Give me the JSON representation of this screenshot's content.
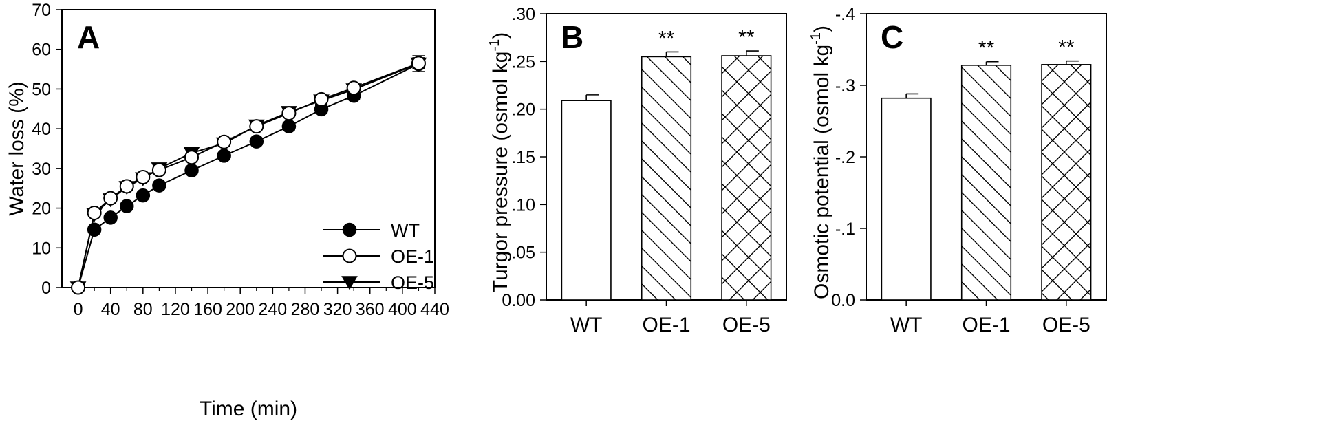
{
  "chart_data": [
    {
      "panel": "A",
      "type": "line",
      "xlabel": "Time (min)",
      "ylabel": "Water loss (%)",
      "xlim": [
        -20,
        440
      ],
      "ylim": [
        0,
        70
      ],
      "xticks": [
        "0",
        "40",
        "80",
        "120",
        "160",
        "200",
        "240",
        "280",
        "320",
        "360",
        "400",
        "440"
      ],
      "yticks": [
        "0",
        "10",
        "20",
        "30",
        "40",
        "50",
        "60",
        "70"
      ],
      "legend_position": "center-right",
      "series": [
        {
          "name": "WT",
          "marker": "filled-circle",
          "x": [
            0,
            20,
            40,
            60,
            80,
            100,
            140,
            180,
            220,
            260,
            300,
            340,
            420
          ],
          "values": [
            0,
            14.6,
            17.6,
            20.5,
            23.2,
            25.7,
            29.5,
            33.2,
            36.8,
            40.6,
            44.9,
            48.3,
            56.3
          ],
          "errors": [
            0,
            0.6,
            0.5,
            0.6,
            0.6,
            0.7,
            0.8,
            0.8,
            0.8,
            0.9,
            0.9,
            0.9,
            1.2
          ]
        },
        {
          "name": "OE-1",
          "marker": "open-circle",
          "x": [
            0,
            20,
            40,
            60,
            80,
            100,
            140,
            180,
            220,
            260,
            300,
            340,
            420
          ],
          "values": [
            0,
            18.8,
            22.5,
            25.5,
            27.8,
            29.6,
            32.8,
            36.7,
            40.6,
            43.9,
            47.4,
            50.3,
            56.5
          ],
          "errors": [
            0,
            0.6,
            0.6,
            0.6,
            0.6,
            0.7,
            0.7,
            0.8,
            0.8,
            0.8,
            0.9,
            0.9,
            1.4
          ]
        },
        {
          "name": "OE-5",
          "marker": "filled-triangle-down",
          "x": [
            0,
            20,
            40,
            60,
            80,
            100,
            140,
            180,
            220,
            260,
            300,
            340,
            420
          ],
          "values": [
            0,
            18.5,
            22.2,
            25.3,
            27.5,
            30.0,
            33.9,
            36.3,
            40.8,
            44.2,
            47.1,
            49.9,
            56.4
          ],
          "errors": [
            0,
            0.6,
            0.6,
            0.6,
            0.6,
            0.7,
            0.7,
            0.8,
            0.8,
            0.8,
            0.9,
            0.9,
            2.0
          ]
        }
      ]
    },
    {
      "panel": "B",
      "type": "bar",
      "xlabel": "",
      "ylabel": "Turgor pressure (osmol kg",
      "ylabel_superscript": "-1",
      "ylabel_close": ")",
      "ylim": [
        0,
        0.3
      ],
      "yticks": [
        "0.00",
        ".05",
        ".10",
        ".15",
        ".20",
        ".25",
        ".30"
      ],
      "categories": [
        "WT",
        "OE-1",
        "OE-5"
      ],
      "values": [
        0.209,
        0.255,
        0.256
      ],
      "errors": [
        0.006,
        0.005,
        0.005
      ],
      "hatch": [
        "none",
        "diagonal",
        "crosshatch"
      ],
      "significance": [
        "",
        "**",
        "**"
      ]
    },
    {
      "panel": "C",
      "type": "bar",
      "xlabel": "",
      "ylabel": "Osmotic potential (osmol kg",
      "ylabel_superscript": "-1",
      "ylabel_close": ")",
      "ylim": [
        0,
        -0.4
      ],
      "yticks": [
        "0.0",
        "-.1",
        "-.2",
        "-.3",
        "-.4"
      ],
      "categories": [
        "WT",
        "OE-1",
        "OE-5"
      ],
      "values": [
        -0.282,
        -0.328,
        -0.329
      ],
      "errors": [
        0.006,
        0.005,
        0.005
      ],
      "hatch": [
        "none",
        "diagonal",
        "crosshatch"
      ],
      "significance": [
        "",
        "**",
        "**"
      ]
    }
  ]
}
